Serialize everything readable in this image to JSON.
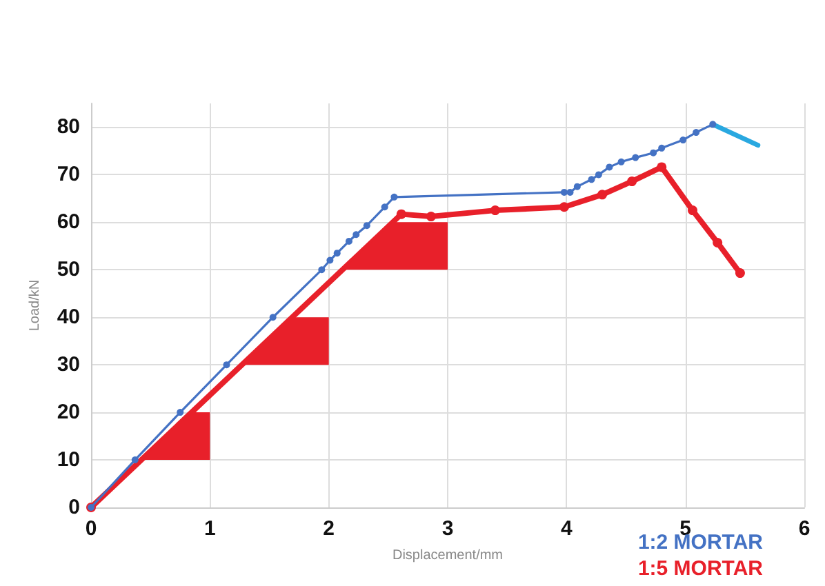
{
  "chart_data": {
    "type": "line",
    "xlabel": "Displacement/mm",
    "ylabel": "Load/kN",
    "xlim": [
      0,
      6
    ],
    "xticks": [
      0,
      1,
      2,
      3,
      4,
      5,
      6
    ],
    "ylim": [
      0,
      85
    ],
    "yticks": [
      0,
      10,
      20,
      30,
      40,
      50,
      60,
      70,
      80
    ],
    "grid": true,
    "legend": "bottom right",
    "marker": "circle",
    "line_style": "solid",
    "series": [
      {
        "name": "1:2 MORTAR",
        "color": "#4472c4",
        "x": [
          0,
          0.37,
          0.75,
          1.14,
          1.53,
          1.94,
          2.01,
          2.07,
          2.17,
          2.23,
          2.32,
          2.47,
          2.55,
          3.98,
          4.03,
          4.09,
          4.21,
          4.27,
          4.36,
          4.46,
          4.58,
          4.73,
          4.8,
          4.98,
          5.09,
          5.23
        ],
        "values": [
          0,
          10,
          20,
          30,
          40,
          50,
          52,
          53.5,
          56,
          57.4,
          59.3,
          63.2,
          65.3,
          66.3,
          66.3,
          67.5,
          69,
          70,
          71.6,
          72.7,
          73.6,
          74.6,
          75.6,
          77.3,
          78.9,
          80.6
        ]
      },
      {
        "color": "#29a8e0",
        "x": [
          5.23,
          5.61
        ],
        "values": [
          80.6,
          76.2
        ],
        "marker": "none"
      },
      {
        "name": "1:5 MORTAR",
        "color": "#e8202a",
        "x": [
          0,
          2.61,
          2.86,
          3.4,
          3.98,
          4.3,
          4.55,
          4.8,
          5.06,
          5.27,
          5.46
        ],
        "values": [
          0,
          61.7,
          61.2,
          62.5,
          63.2,
          65.8,
          68.6,
          71.6,
          62.5,
          55.7,
          49.3
        ]
      }
    ]
  }
}
